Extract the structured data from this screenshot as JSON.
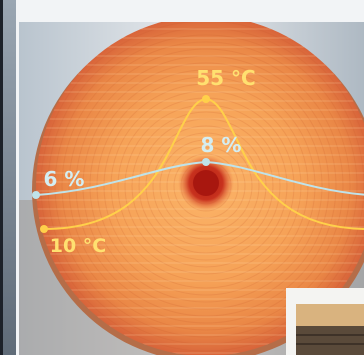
{
  "diagram": {
    "temperature_curve": {
      "peak_label": "55 °C",
      "edge_label": "10 °C",
      "color": "#FFD04A"
    },
    "moisture_curve": {
      "peak_label": "8 %",
      "edge_label": "6 %",
      "color": "#BFE3EA"
    },
    "colors": {
      "core": "#A81810",
      "log_inner": "#F8A050",
      "log_outer": "#D8643A",
      "frame": "#F2F4F6"
    }
  }
}
